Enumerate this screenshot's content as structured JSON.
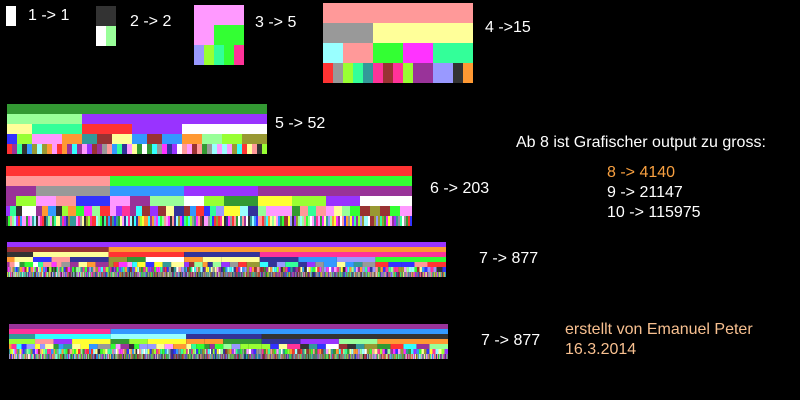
{
  "diagrams": [
    {
      "n": 1,
      "label": "1 -> 1"
    },
    {
      "n": 2,
      "label": "2 -> 2"
    },
    {
      "n": 3,
      "label": "3 -> 5"
    },
    {
      "n": 4,
      "label": "4 ->15"
    },
    {
      "n": 5,
      "label": "5 -> 52"
    },
    {
      "n": 6,
      "label": "6 -> 203"
    },
    {
      "n": 7,
      "label": "7 -> 877"
    },
    {
      "n": 7,
      "label": "7 -> 877"
    }
  ],
  "note": {
    "heading": "Ab 8 ist Grafischer output zu gross:",
    "lines": [
      "8 -> 4140",
      "9 -> 21147",
      "10 -> 115975"
    ]
  },
  "credit": {
    "author": "erstellt von Emanuel Peter",
    "date": "16.3.2014"
  },
  "colors": {
    "background": "#000000",
    "text": "#ffffff",
    "highlight": "#f8a040",
    "credit": "#f8c090",
    "palette": [
      "#9933ff",
      "#ffff33",
      "#999933",
      "#339999",
      "#9999ff",
      "#999999",
      "#ff3333",
      "#993333",
      "#333333",
      "#ff3399",
      "#ff9933",
      "#993399",
      "#ffff99",
      "#339933",
      "#3399ff",
      "#99ffff",
      "#333399",
      "#ffffff",
      "#ff99ff",
      "#33ff33",
      "#3333ff",
      "#ff9999",
      "#33ff99",
      "#99ff33",
      "#ff33ff",
      "#33ffff",
      "#99ff99"
    ]
  }
}
